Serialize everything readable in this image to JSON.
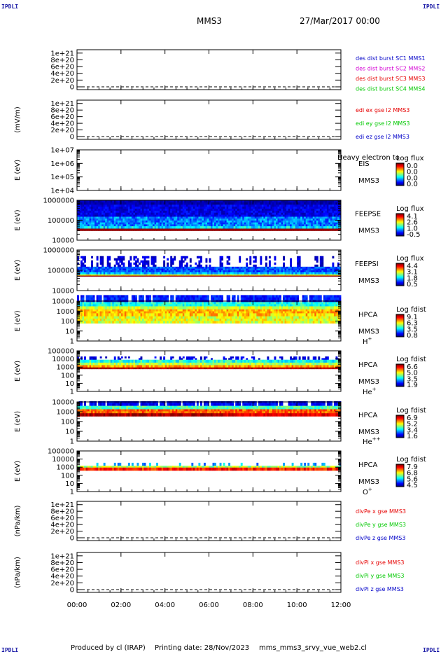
{
  "header": {
    "corner_mark": "IPDLI",
    "spacecraft": "MMS3",
    "datetime": "27/Mar/2017 00:00"
  },
  "footer": {
    "producer": "Produced by cl (IRAP)",
    "printing_date": "Printing date: 28/Nov/2023",
    "filename": "mms_mms3_srvy_vue_web2.cl"
  },
  "time_axis": {
    "ticks": [
      "00:00",
      "02:00",
      "04:00",
      "06:00",
      "08:00",
      "10:00",
      "12:00"
    ]
  },
  "colors": {
    "red": "#e60000",
    "magenta": "#d400d4",
    "green": "#00c800",
    "blue": "#0000c8"
  },
  "chart_data": [
    {
      "type": "line",
      "ylabel": "",
      "yticks": [
        "1e+21",
        "8e+20",
        "6e+20",
        "4e+20",
        "2e+20",
        "0"
      ],
      "ylim": [
        0,
        1.1e+21
      ],
      "baseline": 0,
      "series": [
        {
          "name": "des dist burst SC1 MMS1",
          "color": "#0000c8",
          "values": []
        },
        {
          "name": "des dist burst SC2 MMS2",
          "color": "#d400d4",
          "values": []
        },
        {
          "name": "des dist burst SC3 MMS3",
          "color": "#e60000",
          "values": []
        },
        {
          "name": "des dist burst SC4 MMS4",
          "color": "#00c800",
          "values": []
        }
      ]
    },
    {
      "type": "line",
      "ylabel": "(mV/m)",
      "yticks": [
        "1e+21",
        "8e+20",
        "6e+20",
        "4e+20",
        "2e+20",
        "0"
      ],
      "ylim": [
        0,
        1.1e+21
      ],
      "baseline": 0,
      "series": [
        {
          "name": "edi ex gse l2 MMS3",
          "color": "#e60000",
          "values": []
        },
        {
          "name": "edi ey gse l2 MMS3",
          "color": "#00c800",
          "values": []
        },
        {
          "name": "edi ez gse l2 MMS3",
          "color": "#0000c8",
          "values": []
        }
      ]
    },
    {
      "type": "heatmap",
      "ylabel": "E (eV)",
      "yticks": [
        "1e+07",
        "1e+06",
        "1e+05",
        "1e+04"
      ],
      "ylim_log10": [
        4,
        7
      ],
      "instrument": [
        "EIS",
        "MMS3"
      ],
      "overlay_text": "Heavy electron to",
      "colorbar": {
        "title": "Log flux",
        "ticks": [
          "0.0",
          "0.0",
          "0.0",
          "0.0"
        ]
      },
      "description_bands": []
    },
    {
      "type": "heatmap",
      "ylabel": "E (eV)",
      "yticks": [
        "1000000",
        "100000",
        "10000"
      ],
      "ylim_log10": [
        4,
        6
      ],
      "instrument": [
        "FEEPSE",
        "MMS3"
      ],
      "colorbar": {
        "title": "Log flux",
        "ticks": [
          "4.1",
          "2.6",
          "1.0",
          "-0.5"
        ]
      },
      "bands": [
        {
          "e_from": 600000,
          "e_to": 1000000,
          "level": 0.04,
          "noise": 0.04
        },
        {
          "e_from": 150000,
          "e_to": 600000,
          "level": 0.1,
          "noise": 0.06
        },
        {
          "e_from": 50000,
          "e_to": 150000,
          "level": 0.25,
          "noise": 0.1
        },
        {
          "e_from": 38000,
          "e_to": 50000,
          "level": 0.35,
          "noise": 0.1
        },
        {
          "e_from": 30000,
          "e_to": 38000,
          "level": 0.98,
          "noise": 0.0
        }
      ]
    },
    {
      "type": "heatmap",
      "ylabel": "E (eV)",
      "yticks": [
        "1000000",
        "100000",
        "10000"
      ],
      "ylim_log10": [
        4,
        6
      ],
      "instrument": [
        "FEEPSI",
        "MMS3"
      ],
      "colorbar": {
        "title": "Log flux",
        "ticks": [
          "4.4",
          "3.1",
          "1.8",
          "0.5"
        ]
      },
      "bands": [
        {
          "e_from": 150000,
          "e_to": 500000,
          "level": 0.08,
          "noise": 0.05,
          "sparse": 0.55
        },
        {
          "e_from": 80000,
          "e_to": 150000,
          "level": 0.2,
          "noise": 0.08
        },
        {
          "e_from": 62000,
          "e_to": 80000,
          "level": 0.3,
          "noise": 0.08
        },
        {
          "e_from": 55000,
          "e_to": 62000,
          "level": 0.62,
          "noise": 0.05
        },
        {
          "e_from": 50000,
          "e_to": 55000,
          "level": 0.98,
          "noise": 0.0
        }
      ]
    },
    {
      "type": "heatmap",
      "ylabel": "E (eV)",
      "yticks": [
        "10000",
        "1000",
        "100",
        "10",
        "1"
      ],
      "ylim_log10": [
        0,
        4
      ],
      "instrument": [
        "HPCA",
        "MMS3"
      ],
      "species": "H",
      "species_sup": "+",
      "colorbar": {
        "title": "Log fdist",
        "ticks": [
          "9.1",
          "6.3",
          "3.5",
          "0.8"
        ]
      },
      "bands": [
        {
          "e_from": 8000,
          "e_to": 40000,
          "level": 0.15,
          "noise": 0.06,
          "gaps": true
        },
        {
          "e_from": 3000,
          "e_to": 8000,
          "level": 0.4,
          "noise": 0.08
        },
        {
          "e_from": 1500,
          "e_to": 3000,
          "level": 0.58,
          "noise": 0.08
        },
        {
          "e_from": 600,
          "e_to": 1500,
          "level": 0.7,
          "noise": 0.08
        },
        {
          "e_from": 300,
          "e_to": 600,
          "level": 0.68,
          "noise": 0.1
        },
        {
          "e_from": 60,
          "e_to": 300,
          "level": 0.6,
          "noise": 0.1
        }
      ]
    },
    {
      "type": "heatmap",
      "ylabel": "E (eV)",
      "yticks": [
        "100000",
        "10000",
        "1000",
        "100",
        "10",
        "1"
      ],
      "ylim_log10": [
        0,
        5
      ],
      "instrument": [
        "HPCA",
        "MMS3"
      ],
      "species": "He",
      "species_sup": "+",
      "colorbar": {
        "title": "Log fdist",
        "ticks": [
          "6.6",
          "5.0",
          "3.5",
          "1.9"
        ]
      },
      "bands": [
        {
          "e_from": 8000,
          "e_to": 20000,
          "level": 0.1,
          "noise": 0.06,
          "sparse": 0.5
        },
        {
          "e_from": 3500,
          "e_to": 8000,
          "level": 0.4,
          "noise": 0.1
        },
        {
          "e_from": 1700,
          "e_to": 3500,
          "level": 0.55,
          "noise": 0.08
        },
        {
          "e_from": 900,
          "e_to": 1700,
          "level": 0.72,
          "noise": 0.08
        },
        {
          "e_from": 600,
          "e_to": 900,
          "level": 0.95,
          "noise": 0.04
        }
      ]
    },
    {
      "type": "heatmap",
      "ylabel": "E (eV)",
      "yticks": [
        "10000",
        "1000",
        "100",
        "10",
        "1"
      ],
      "ylim_log10": [
        0,
        4
      ],
      "instrument": [
        "HPCA",
        "MMS3"
      ],
      "species": "He",
      "species_sup": "++",
      "colorbar": {
        "title": "Log fdist",
        "ticks": [
          "6.9",
          "5.2",
          "3.4",
          "1.6"
        ]
      },
      "bands": [
        {
          "e_from": 4000,
          "e_to": 12000,
          "level": 0.12,
          "noise": 0.06,
          "gaps": true
        },
        {
          "e_from": 1800,
          "e_to": 4000,
          "level": 0.45,
          "noise": 0.08
        },
        {
          "e_from": 700,
          "e_to": 1800,
          "level": 0.78,
          "noise": 0.08
        },
        {
          "e_from": 350,
          "e_to": 700,
          "level": 0.9,
          "noise": 0.06
        }
      ]
    },
    {
      "type": "heatmap",
      "ylabel": "E (eV)",
      "yticks": [
        "100000",
        "10000",
        "1000",
        "100",
        "10",
        "1"
      ],
      "ylim_log10": [
        0,
        5
      ],
      "instrument": [
        "HPCA",
        "MMS3"
      ],
      "species": "O",
      "species_sup": "+",
      "colorbar": {
        "title": "Log fdist",
        "ticks": [
          "7.9",
          "6.8",
          "5.6",
          "4.5"
        ]
      },
      "bands": [
        {
          "e_from": 1500,
          "e_to": 3500,
          "level": 0.3,
          "noise": 0.1,
          "sparse": 0.7
        },
        {
          "e_from": 900,
          "e_to": 1500,
          "level": 0.55,
          "noise": 0.1
        },
        {
          "e_from": 400,
          "e_to": 900,
          "level": 0.85,
          "noise": 0.08
        }
      ]
    },
    {
      "type": "line",
      "ylabel": "(nPa/km)",
      "yticks": [
        "1e+21",
        "8e+20",
        "6e+20",
        "4e+20",
        "2e+20",
        "0"
      ],
      "ylim": [
        0,
        1.1e+21
      ],
      "baseline": 0,
      "series": [
        {
          "name": "divPe x gse MMS3",
          "color": "#e60000",
          "values": []
        },
        {
          "name": "divPe y gse MMS3",
          "color": "#00c800",
          "values": []
        },
        {
          "name": "divPe z gse MMS3",
          "color": "#0000c8",
          "values": []
        }
      ]
    },
    {
      "type": "line",
      "ylabel": "(nPa/km)",
      "yticks": [
        "1e+21",
        "8e+20",
        "6e+20",
        "4e+20",
        "2e+20",
        "0"
      ],
      "ylim": [
        0,
        1.1e+21
      ],
      "baseline": 0,
      "series": [
        {
          "name": "divPi x gse MMS3",
          "color": "#e60000",
          "values": []
        },
        {
          "name": "divPi y gse MMS3",
          "color": "#00c800",
          "values": []
        },
        {
          "name": "divPi z gse MMS3",
          "color": "#0000c8",
          "values": []
        }
      ]
    }
  ]
}
